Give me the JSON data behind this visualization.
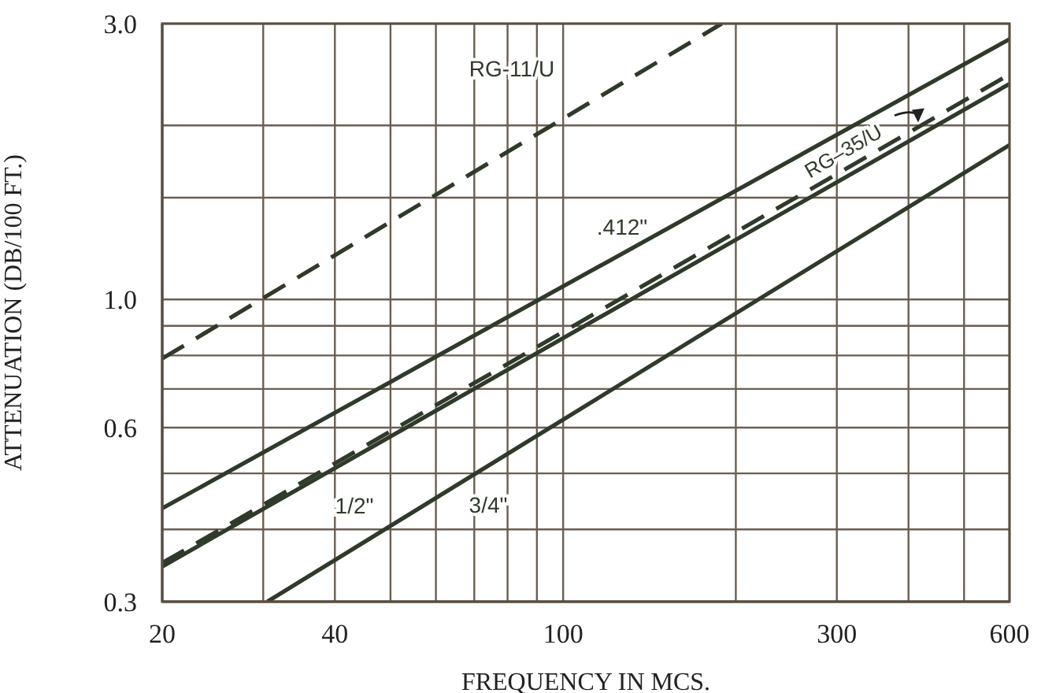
{
  "chart_data": {
    "type": "line",
    "xlabel": "FREQUENCY IN MCS.",
    "ylabel": "ATTENUATION (DB/100 FT.)",
    "log": "xy",
    "grid": true,
    "marker": "none",
    "xlim": [
      20,
      600
    ],
    "ylim": [
      0.3,
      3
    ],
    "xticks": [
      20,
      {
        "value": 30,
        "label": null
      },
      40,
      {
        "value": 50,
        "label": null
      },
      {
        "value": 60,
        "label": null
      },
      {
        "value": 70,
        "label": null
      },
      {
        "value": 80,
        "label": null
      },
      {
        "value": 90,
        "label": null
      },
      100,
      {
        "value": 200,
        "label": null
      },
      300,
      {
        "value": 400,
        "label": null
      },
      {
        "value": 500,
        "label": null
      },
      600
    ],
    "yticks": [
      0.3,
      {
        "value": 0.4,
        "label": null
      },
      {
        "value": 0.5,
        "label": null
      },
      0.6,
      {
        "value": 0.7,
        "label": null
      },
      {
        "value": 0.8,
        "label": null
      },
      {
        "value": 0.9,
        "label": null
      },
      {
        "value": 1,
        "label": "1.0"
      },
      {
        "value": 1.5,
        "label": null
      },
      {
        "value": 2,
        "label": null
      },
      {
        "value": 3,
        "label": "3.0"
      }
    ],
    "series": [
      {
        "name": "RG-11/U",
        "color": "#2f3a2a",
        "line_style": "dashed",
        "x": [
          20,
          189
        ],
        "values": [
          0.79,
          3.0
        ]
      },
      {
        "name": ".412\"",
        "color": "#2f3a2a",
        "line_style": "solid",
        "x": [
          20,
          600
        ],
        "values": [
          0.435,
          2.82
        ]
      },
      {
        "name": "RG–35/U",
        "color": "#2f3a2a",
        "line_style": "dashed",
        "x": [
          20,
          600
        ],
        "values": [
          0.35,
          2.45
        ]
      },
      {
        "name": "1/2\"",
        "color": "#2f3a2a",
        "line_style": "solid",
        "x": [
          20,
          600
        ],
        "values": [
          0.345,
          2.36
        ]
      },
      {
        "name": "3/4\"",
        "color": "#2f3a2a",
        "line_style": "solid",
        "x": [
          30.5,
          600
        ],
        "values": [
          0.3,
          1.85
        ]
      }
    ]
  }
}
